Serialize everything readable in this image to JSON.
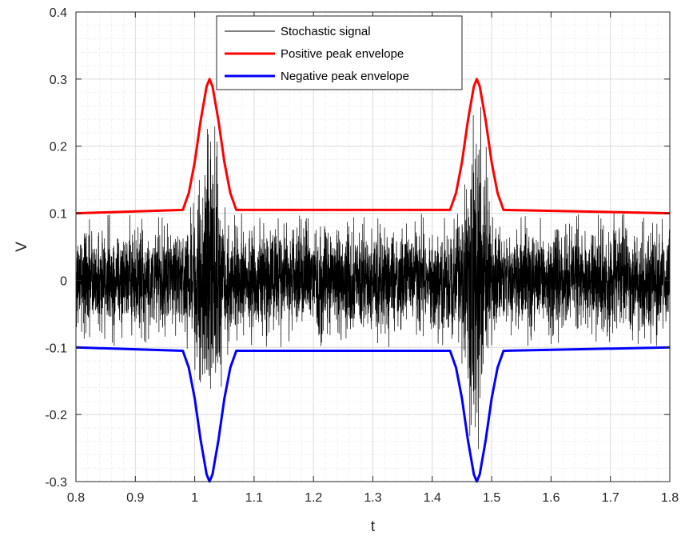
{
  "chart_data": {
    "type": "line",
    "xlabel": "t",
    "ylabel": "V",
    "xlim": [
      0.8,
      1.8
    ],
    "ylim": [
      -0.3,
      0.4
    ],
    "x_ticks": [
      0.8,
      0.9,
      1.0,
      1.1,
      1.2,
      1.3,
      1.4,
      1.5,
      1.6,
      1.7,
      1.8
    ],
    "x_tick_labels": [
      "0.8",
      "0.9",
      "1",
      "1.1",
      "1.2",
      "1.3",
      "1.4",
      "1.5",
      "1.6",
      "1.7",
      "1.8"
    ],
    "y_ticks": [
      -0.3,
      -0.2,
      -0.1,
      0,
      0.1,
      0.2,
      0.3,
      0.4
    ],
    "y_tick_labels": [
      "-0.3",
      "-0.2",
      "-0.1",
      "0",
      "0.1",
      "0.2",
      "0.3",
      "0.4"
    ],
    "grid": true,
    "minor_grid": true,
    "legend_position": "top-center",
    "series": [
      {
        "name": "Stochastic signal",
        "color": "#000000",
        "kind": "noise",
        "description_values": {
          "baseline_peak_amplitude": 0.1,
          "burst_peak_amplitude": 0.3,
          "burst_centers": [
            1.025,
            1.475
          ]
        }
      },
      {
        "name": "Positive peak envelope",
        "color": "#ff0000",
        "x": [
          0.8,
          0.98,
          0.99,
          1.0,
          1.01,
          1.02,
          1.025,
          1.03,
          1.04,
          1.05,
          1.06,
          1.07,
          1.43,
          1.44,
          1.45,
          1.46,
          1.47,
          1.475,
          1.48,
          1.49,
          1.5,
          1.51,
          1.52,
          1.8
        ],
        "y": [
          0.1,
          0.105,
          0.13,
          0.176,
          0.238,
          0.289,
          0.3,
          0.289,
          0.238,
          0.176,
          0.13,
          0.105,
          0.105,
          0.13,
          0.176,
          0.238,
          0.289,
          0.3,
          0.289,
          0.238,
          0.176,
          0.13,
          0.105,
          0.1
        ]
      },
      {
        "name": "Negative peak envelope",
        "color": "#0000ff",
        "x": [
          0.8,
          0.98,
          0.99,
          1.0,
          1.01,
          1.02,
          1.025,
          1.03,
          1.04,
          1.05,
          1.06,
          1.07,
          1.43,
          1.44,
          1.45,
          1.46,
          1.47,
          1.475,
          1.48,
          1.49,
          1.5,
          1.51,
          1.52,
          1.8
        ],
        "y": [
          -0.1,
          -0.105,
          -0.13,
          -0.176,
          -0.238,
          -0.289,
          -0.3,
          -0.289,
          -0.238,
          -0.176,
          -0.13,
          -0.105,
          -0.105,
          -0.13,
          -0.176,
          -0.238,
          -0.289,
          -0.3,
          -0.289,
          -0.238,
          -0.176,
          -0.13,
          -0.105,
          -0.1
        ]
      }
    ]
  }
}
